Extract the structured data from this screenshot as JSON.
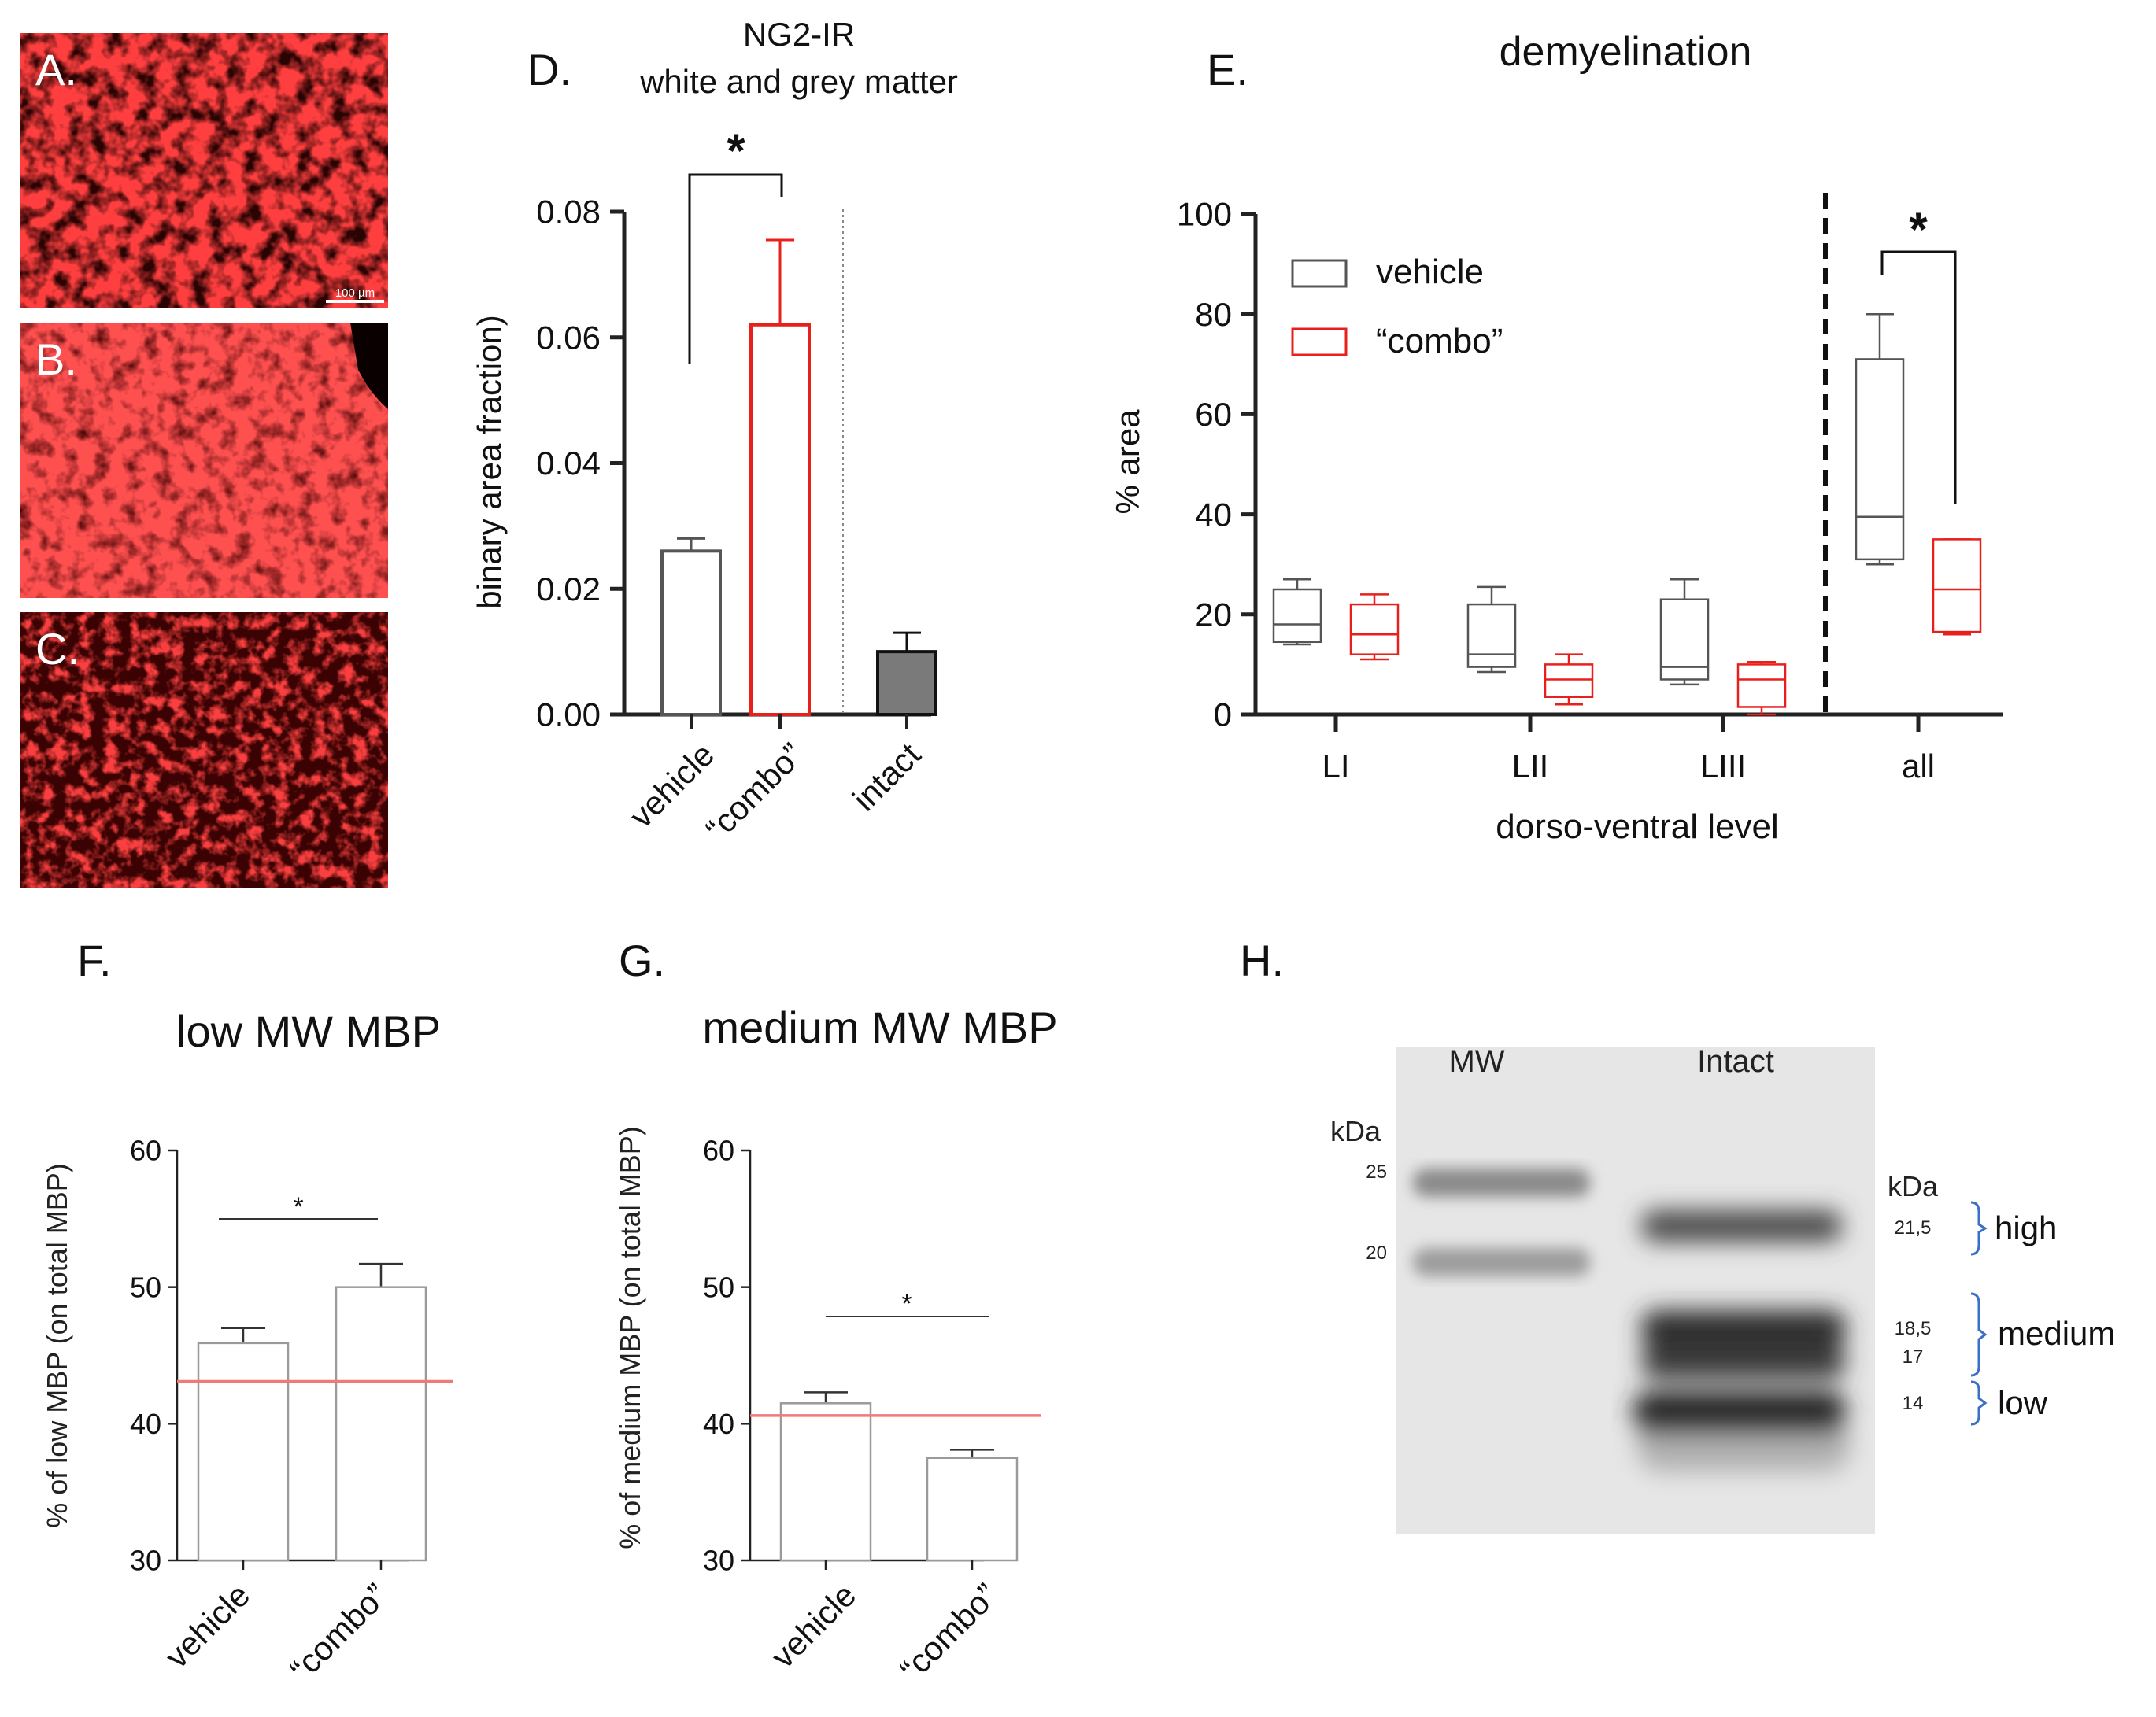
{
  "colors": {
    "vehicle": "#555555",
    "combo": "#e8201c",
    "intact": "#7a7a7a",
    "ref_line": "#f07a7a",
    "micro": "#c80000",
    "bracket": "#3a70c8"
  },
  "panels": {
    "A": {
      "label": "A."
    },
    "B": {
      "label": "B."
    },
    "C": {
      "label": "C."
    },
    "scalebar": "100 µm",
    "D": {
      "label": "D."
    },
    "E": {
      "label": "E."
    },
    "F": {
      "label": "F."
    },
    "G": {
      "label": "G."
    },
    "H": {
      "label": "H."
    }
  },
  "chart_data": [
    {
      "id": "D",
      "type": "bar",
      "title": "NG2-IR",
      "subtitle": "white and grey matter",
      "ylabel": "binary area fraction)",
      "ylim": [
        0,
        0.08
      ],
      "yticks": [
        "0.00",
        "0.02",
        "0.04",
        "0.06",
        "0.08"
      ],
      "categories": [
        "vehicle",
        "“combo”",
        "intact"
      ],
      "values": [
        0.026,
        0.062,
        0.01
      ],
      "errors": [
        0.002,
        0.0135,
        0.003
      ],
      "significance": "*"
    },
    {
      "id": "E",
      "type": "box",
      "title": "demyelination",
      "ylabel": "% area",
      "xlabel": "dorso-ventral level",
      "ylim": [
        0,
        100
      ],
      "yticks": [
        "0",
        "20",
        "40",
        "60",
        "80",
        "100"
      ],
      "categories": [
        "LI",
        "LII",
        "LIII",
        "all"
      ],
      "legend": [
        {
          "name": "vehicle"
        },
        {
          "name": "“combo”"
        }
      ],
      "series": [
        {
          "name": "vehicle",
          "boxes": [
            {
              "min": 14,
              "q1": 14.5,
              "median": 18,
              "q3": 25,
              "max": 27
            },
            {
              "min": 8.5,
              "q1": 9.5,
              "median": 12,
              "q3": 22,
              "max": 25.5
            },
            {
              "min": 6,
              "q1": 7,
              "median": 9.5,
              "q3": 23,
              "max": 27
            },
            {
              "min": 30,
              "q1": 31,
              "median": 39.5,
              "q3": 71,
              "max": 80
            }
          ]
        },
        {
          "name": "“combo”",
          "boxes": [
            {
              "min": 11,
              "q1": 12,
              "median": 16,
              "q3": 22,
              "max": 24
            },
            {
              "min": 2,
              "q1": 3.5,
              "median": 7,
              "q3": 10,
              "max": 12
            },
            {
              "min": 0,
              "q1": 1.5,
              "median": 7,
              "q3": 10,
              "max": 10.5
            },
            {
              "min": 16,
              "q1": 16.5,
              "median": 25,
              "q3": 35,
              "max": 35
            }
          ]
        }
      ],
      "significance": "*"
    },
    {
      "id": "F",
      "type": "bar",
      "title": "low MW MBP",
      "ylabel": "% of low MBP (on total MBP)",
      "ylim": [
        30,
        60
      ],
      "yticks": [
        "30",
        "40",
        "50",
        "60"
      ],
      "categories": [
        "vehicle",
        "“combo”"
      ],
      "values": [
        45.9,
        50.0
      ],
      "errors": [
        1.1,
        1.7
      ],
      "reference_line": 43.1,
      "significance": "*"
    },
    {
      "id": "G",
      "type": "bar",
      "title": "medium MW MBP",
      "ylabel": "% of medium MBP (on total MBP)",
      "ylim": [
        30,
        60
      ],
      "yticks": [
        "30",
        "40",
        "50",
        "60"
      ],
      "categories": [
        "vehicle",
        "“combo”"
      ],
      "values": [
        41.5,
        37.5
      ],
      "errors": [
        0.8,
        0.6
      ],
      "reference_line": 40.6,
      "significance": "*"
    }
  ],
  "blot": {
    "lanes": [
      "MW",
      "Intact"
    ],
    "left_unit": "kDa",
    "left_marks": [
      "25",
      "20"
    ],
    "right_unit": "kDa",
    "right_marks": [
      {
        "kda": "21,5",
        "group": "high"
      },
      {
        "kda": "18,5",
        "group": "medium"
      },
      {
        "kda": "17",
        "group": ""
      },
      {
        "kda": "14",
        "group": "low"
      }
    ]
  }
}
